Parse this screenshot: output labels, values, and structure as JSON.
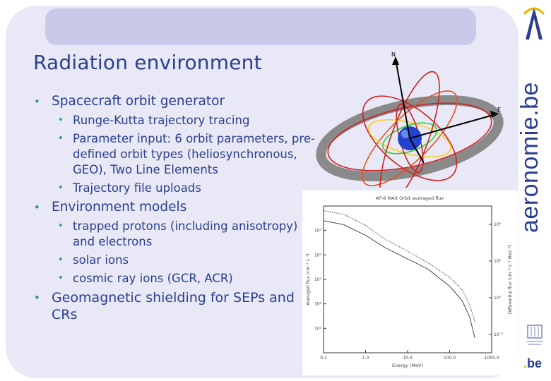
{
  "slide": {
    "title": "Radiation environment",
    "bullets": [
      {
        "text": "Spacecraft orbit generator",
        "sub": [
          "Runge-Kutta trajectory tracing",
          "Parameter input: 6 orbit parameters, pre-defined orbit types (heliosynchronous, GEO), Two Line Elements",
          "Trajectory file uploads"
        ]
      },
      {
        "text": "Environment models",
        "sub": [
          "trapped protons (including anisotropy) and electrons",
          "solar ions",
          "cosmic ray ions (GCR, ACR)"
        ]
      },
      {
        "text": "Geomagnetic shielding for SEPs and CRs",
        "sub": []
      }
    ]
  },
  "brand": {
    "vertical_text": "aeronomie.be",
    "be_logo_prefix": ".",
    "be_logo_text": "be"
  },
  "orbit_figure": {
    "axis_labels": [
      "N",
      "E"
    ]
  },
  "chart_data": {
    "type": "line",
    "title": "AP-8 MAX Orbit averaged flux",
    "xlabel": "Energy (MeV)",
    "ylabel_left": "Averaged flux (cm⁻² s⁻¹)",
    "ylabel_right": "Differential flux (cm⁻² s⁻¹ MeV⁻¹)",
    "xscale": "log",
    "yscale": "log",
    "xlim": [
      0.1,
      1000
    ],
    "ylim": [
      0.01,
      100000
    ],
    "x_ticks": [
      "0.1",
      "1.0",
      "10.0",
      "100.0",
      "1000.0"
    ],
    "y_ticks_left": [
      "10¹",
      "10²",
      "10³",
      "10⁴",
      "10⁵"
    ],
    "y_ticks_right": [
      "10⁻²",
      "10⁰",
      "10²",
      "10⁴"
    ],
    "series": [
      {
        "style": "solid",
        "x": [
          0.1,
          0.3,
          1,
          3,
          10,
          30,
          100,
          200,
          300,
          400
        ],
        "y": [
          20000,
          13000,
          4000,
          1000,
          300,
          100,
          15,
          3,
          0.5,
          0.05
        ]
      },
      {
        "style": "dotted",
        "x": [
          0.1,
          0.3,
          1,
          3,
          10,
          30,
          100,
          200,
          300,
          400
        ],
        "y": [
          60000,
          40000,
          12000,
          2500,
          700,
          200,
          40,
          10,
          2,
          0.3
        ]
      }
    ]
  }
}
